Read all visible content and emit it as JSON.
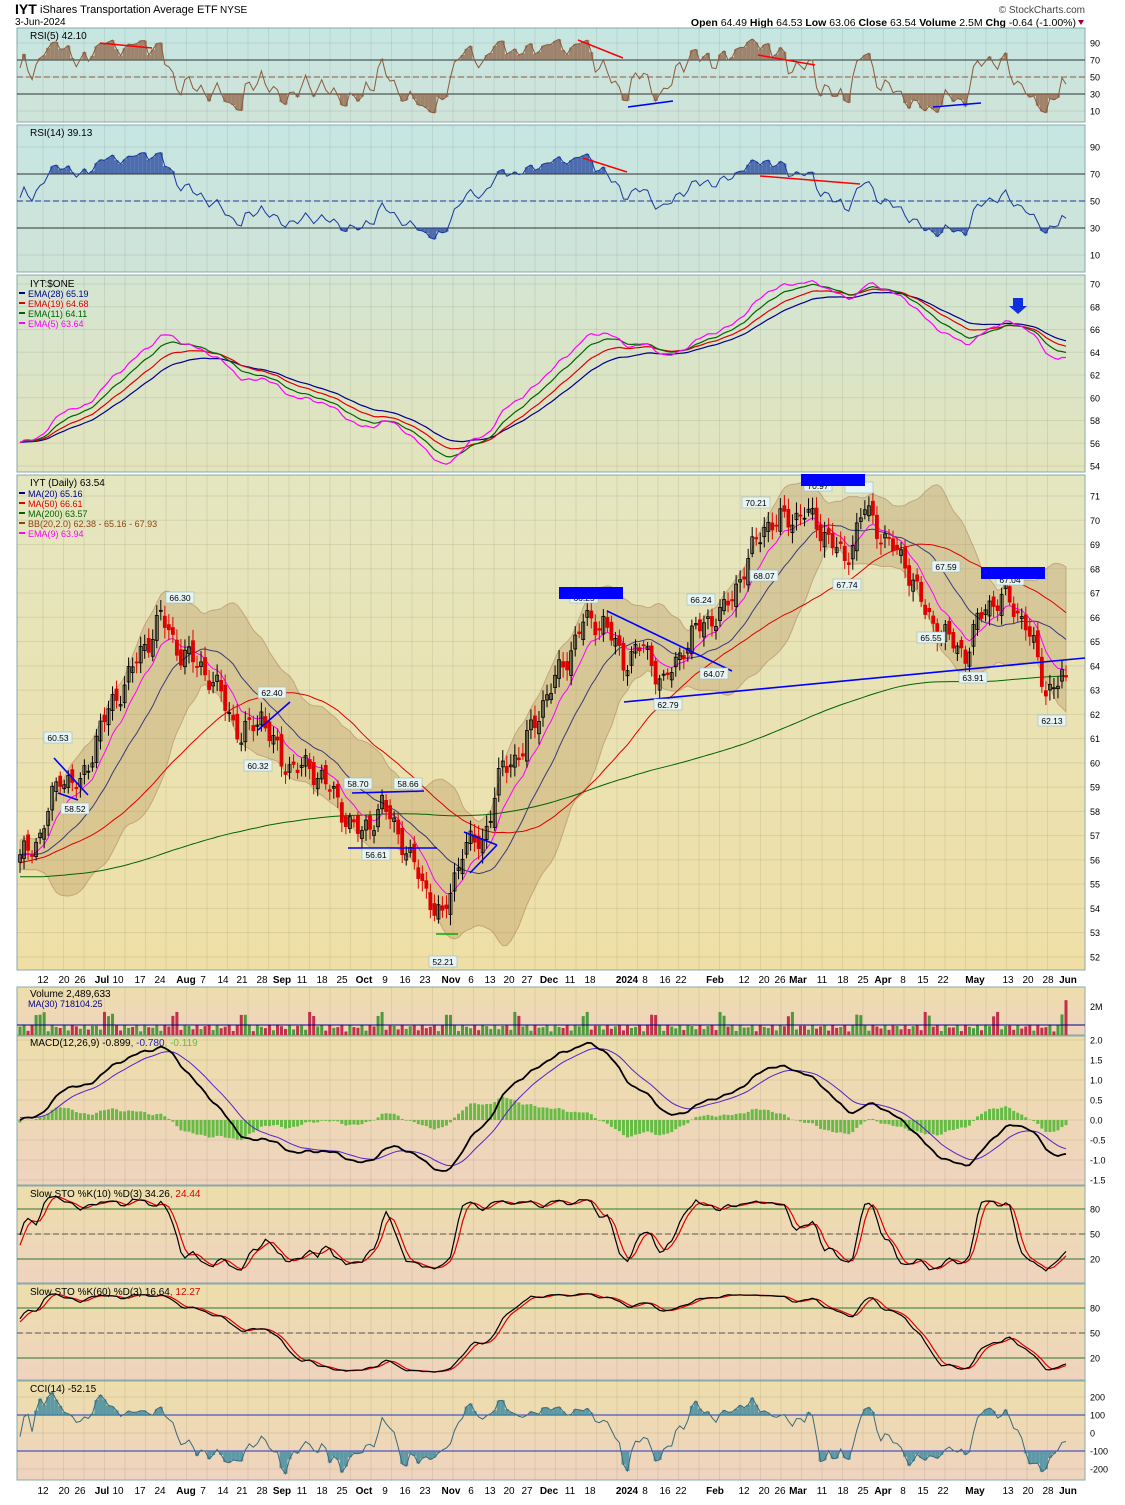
{
  "header": {
    "symbol": "IYT",
    "name": "iShares Transportation Average ETF",
    "exchange": "NYSE",
    "date": "3-Jun-2024",
    "watermark": "© StockCharts.com",
    "open_label": "Open",
    "open": "64.49",
    "high_label": "High",
    "high": "64.53",
    "low_label": "Low",
    "low": "63.06",
    "close_label": "Close",
    "close": "63.54",
    "volume_label": "Volume",
    "volume": "2.5M",
    "chg_label": "Chg",
    "chg": "-0.64 (-1.00%)"
  },
  "panels": {
    "rsi5": {
      "label": "RSI(5) 42.10",
      "ticks": [
        "90",
        "70",
        "50",
        "30",
        "10"
      ]
    },
    "rsi14": {
      "label": "RSI(14) 39.13",
      "ticks": [
        "90",
        "70",
        "50",
        "30",
        "10"
      ]
    },
    "ema": {
      "title": "IYT:$ONE",
      "legend": [
        {
          "text": "EMA(28) 65.19",
          "color": "#00008b"
        },
        {
          "text": "EMA(19) 64.68",
          "color": "#e00000"
        },
        {
          "text": "EMA(11) 64.11",
          "color": "#006400"
        },
        {
          "text": "EMA(5) 63.64",
          "color": "#ff00ff"
        }
      ],
      "ticks": [
        "70",
        "68",
        "66",
        "64",
        "62",
        "60",
        "58",
        "56",
        "54"
      ]
    },
    "price": {
      "title": "IYT (Daily) 63.54",
      "legend": [
        {
          "text": "MA(20) 65.16",
          "color": "#00008b"
        },
        {
          "text": "MA(50) 66.61",
          "color": "#e00000"
        },
        {
          "text": "MA(200) 63.57",
          "color": "#006400"
        },
        {
          "text": "BB(20,2.0) 62.38 - 65.16 - 67.93",
          "color": "#8b4513"
        },
        {
          "text": "EMA(9) 63.94",
          "color": "#ff00ff"
        }
      ],
      "ticks": [
        "71",
        "70",
        "69",
        "68",
        "67",
        "66",
        "65",
        "64",
        "63",
        "62",
        "61",
        "60",
        "59",
        "58",
        "57",
        "56",
        "55",
        "54",
        "53",
        "52"
      ],
      "annotations": [
        "60.53",
        "58.52",
        "66.30",
        "62.40",
        "60.32",
        "58.70",
        "58.66",
        "56.61",
        "52.21",
        "66.25",
        "66.24",
        "64.07",
        "62.79",
        "70.21",
        "68.07",
        "70.97",
        "67.74",
        "67.59",
        "65.55",
        "63.91",
        "67.04",
        "62.13"
      ]
    },
    "volume": {
      "label": "Volume 2,489,633",
      "ma": "MA(30) 718104.25",
      "ticks": [
        "2M"
      ]
    },
    "macd": {
      "label": "MACD(12,26,9) -0.899",
      "signal": ", -0.780",
      "hist": ", -0.119",
      "ticks": [
        "2.0",
        "1.5",
        "1.0",
        "0.5",
        "0.0",
        "-0.5",
        "-1.0",
        "-1.5"
      ]
    },
    "sto10": {
      "label": "Slow STO %K(10) %D(3) 34.26",
      "d": ", 24.44",
      "ticks": [
        "80",
        "50",
        "20"
      ]
    },
    "sto60": {
      "label": "Slow STO %K(60) %D(3) 16.64",
      "d": ", 12.27",
      "ticks": [
        "80",
        "50",
        "20"
      ]
    },
    "cci": {
      "label": "CCI(14) -52.15",
      "ticks": [
        "200",
        "100",
        "0",
        "-100",
        "-200"
      ]
    }
  },
  "x_axis": [
    {
      "t": "12"
    },
    {
      "t": "20"
    },
    {
      "t": "26"
    },
    {
      "t": "Jul",
      "b": true
    },
    {
      "t": "10"
    },
    {
      "t": "17"
    },
    {
      "t": "24"
    },
    {
      "t": "Aug",
      "b": true
    },
    {
      "t": "7"
    },
    {
      "t": "14"
    },
    {
      "t": "21"
    },
    {
      "t": "28"
    },
    {
      "t": "Sep",
      "b": true
    },
    {
      "t": "11"
    },
    {
      "t": "18"
    },
    {
      "t": "25"
    },
    {
      "t": "Oct",
      "b": true
    },
    {
      "t": "9"
    },
    {
      "t": "16"
    },
    {
      "t": "23"
    },
    {
      "t": "Nov",
      "b": true
    },
    {
      "t": "6"
    },
    {
      "t": "13"
    },
    {
      "t": "20"
    },
    {
      "t": "27"
    },
    {
      "t": "Dec",
      "b": true
    },
    {
      "t": "11"
    },
    {
      "t": "18"
    },
    {
      "t": "2024",
      "b": true
    },
    {
      "t": "8"
    },
    {
      "t": "16"
    },
    {
      "t": "22"
    },
    {
      "t": "Feb",
      "b": true
    },
    {
      "t": "12"
    },
    {
      "t": "20"
    },
    {
      "t": "26"
    },
    {
      "t": "Mar",
      "b": true
    },
    {
      "t": "11"
    },
    {
      "t": "18"
    },
    {
      "t": "25"
    },
    {
      "t": "Apr",
      "b": true
    },
    {
      "t": "8"
    },
    {
      "t": "15"
    },
    {
      "t": "22"
    },
    {
      "t": "May",
      "b": true
    },
    {
      "t": "13"
    },
    {
      "t": "20"
    },
    {
      "t": "28"
    },
    {
      "t": "Jun",
      "b": true
    }
  ],
  "colors": {
    "up_candle": "#000000",
    "down_candle": "#e00000",
    "trendline": "#0000ff",
    "divergence": "#ff0000",
    "volume_up": "#4c9a3c",
    "volume_down": "#c0304a",
    "macd_hist": "#66bb44"
  },
  "chart_data": {
    "type": "candlestick",
    "note_units": "USD",
    "weeks": [
      "2023-06-05",
      "2023-06-12",
      "2023-06-20",
      "2023-06-26",
      "2023-07-03",
      "2023-07-10",
      "2023-07-17",
      "2023-07-24",
      "2023-07-31",
      "2023-08-07",
      "2023-08-14",
      "2023-08-21",
      "2023-08-28",
      "2023-09-04",
      "2023-09-11",
      "2023-09-18",
      "2023-09-25",
      "2023-10-02",
      "2023-10-09",
      "2023-10-16",
      "2023-10-23",
      "2023-10-30",
      "2023-11-06",
      "2023-11-13",
      "2023-11-20",
      "2023-11-27",
      "2023-12-04",
      "2023-12-11",
      "2023-12-18",
      "2023-12-25",
      "2024-01-01",
      "2024-01-08",
      "2024-01-15",
      "2024-01-22",
      "2024-01-29",
      "2024-02-05",
      "2024-02-12",
      "2024-02-20",
      "2024-02-26",
      "2024-03-04",
      "2024-03-11",
      "2024-03-18",
      "2024-03-25",
      "2024-04-01",
      "2024-04-08",
      "2024-04-15",
      "2024-04-22",
      "2024-04-29",
      "2024-05-06",
      "2024-05-13",
      "2024-05-20",
      "2024-05-28",
      "2024-06-03"
    ],
    "weekly_close": [
      56.0,
      57.0,
      59.5,
      59.0,
      61.5,
      63.0,
      64.5,
      66.0,
      64.5,
      64.0,
      62.8,
      61.0,
      62.0,
      60.0,
      59.8,
      59.5,
      58.0,
      57.0,
      58.3,
      56.8,
      55.0,
      53.5,
      56.5,
      56.8,
      59.8,
      60.5,
      62.5,
      64.0,
      65.8,
      65.8,
      64.2,
      64.8,
      63.2,
      64.8,
      65.8,
      66.2,
      68.0,
      69.8,
      70.0,
      70.3,
      69.5,
      68.3,
      70.5,
      69.2,
      68.3,
      66.2,
      65.2,
      64.5,
      66.5,
      66.8,
      65.8,
      63.0,
      63.54
    ],
    "ylim": [
      52,
      71.5
    ]
  }
}
